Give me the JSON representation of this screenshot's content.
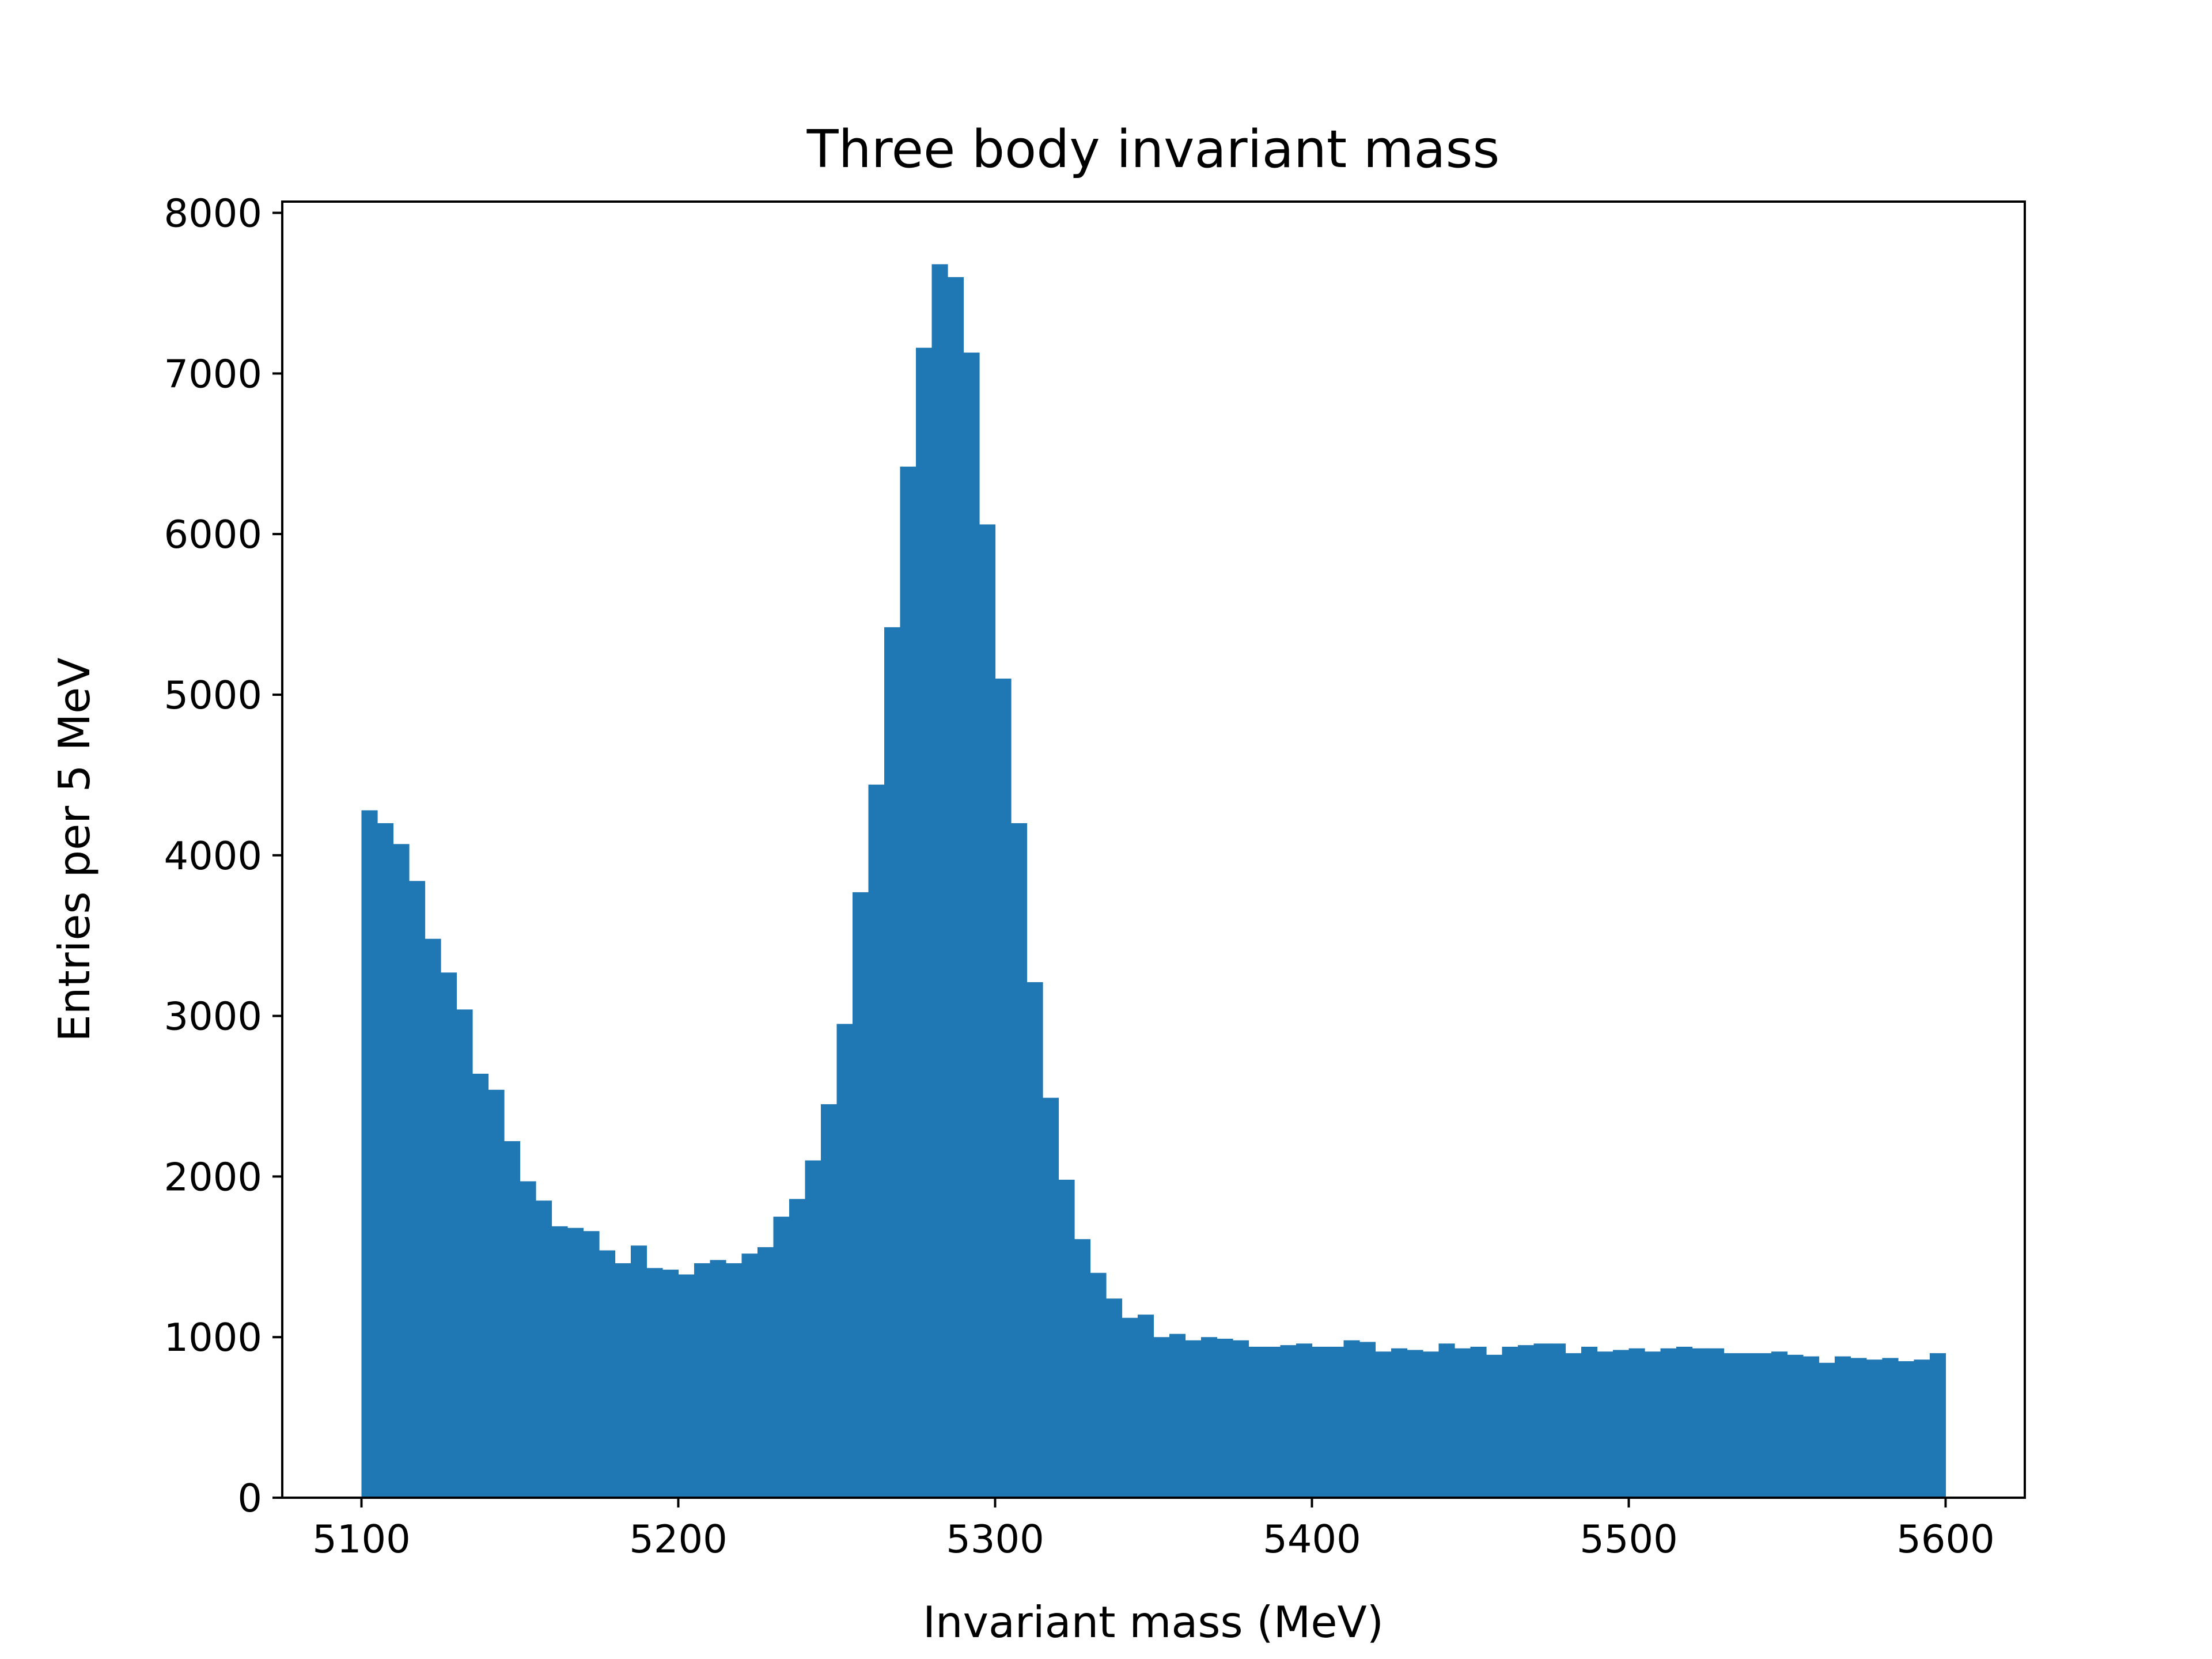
{
  "chart_data": {
    "type": "bar",
    "title": "Three body invariant mass",
    "xlabel": "Invariant mass (MeV)",
    "ylabel": "Entries per 5 MeV",
    "xlim": [
      5075,
      5625
    ],
    "ylim": [
      0,
      8070
    ],
    "bin_width": 5,
    "x": [
      5100,
      5105,
      5110,
      5115,
      5120,
      5125,
      5130,
      5135,
      5140,
      5145,
      5150,
      5155,
      5160,
      5165,
      5170,
      5175,
      5180,
      5185,
      5190,
      5195,
      5200,
      5205,
      5210,
      5215,
      5220,
      5225,
      5230,
      5235,
      5240,
      5245,
      5250,
      5255,
      5260,
      5265,
      5270,
      5275,
      5280,
      5285,
      5290,
      5295,
      5300,
      5305,
      5310,
      5315,
      5320,
      5325,
      5330,
      5335,
      5340,
      5345,
      5350,
      5355,
      5360,
      5365,
      5370,
      5375,
      5380,
      5385,
      5390,
      5395,
      5400,
      5405,
      5410,
      5415,
      5420,
      5425,
      5430,
      5435,
      5440,
      5445,
      5450,
      5455,
      5460,
      5465,
      5470,
      5475,
      5480,
      5485,
      5490,
      5495,
      5500,
      5505,
      5510,
      5515,
      5520,
      5525,
      5530,
      5535,
      5540,
      5545,
      5550,
      5555,
      5560,
      5565,
      5570,
      5575,
      5580,
      5585,
      5590,
      5595
    ],
    "values": [
      4280,
      4200,
      4070,
      3840,
      3480,
      3270,
      3040,
      2640,
      2540,
      2220,
      1970,
      1850,
      1690,
      1680,
      1660,
      1540,
      1460,
      1570,
      1430,
      1420,
      1390,
      1460,
      1480,
      1460,
      1520,
      1560,
      1750,
      1860,
      2100,
      2450,
      2950,
      3770,
      4440,
      5420,
      6420,
      7160,
      7680,
      7600,
      7130,
      6060,
      5100,
      4200,
      3210,
      2490,
      1980,
      1610,
      1400,
      1240,
      1120,
      1140,
      1000,
      1020,
      980,
      1000,
      990,
      980,
      940,
      940,
      950,
      960,
      940,
      940,
      980,
      970,
      910,
      930,
      920,
      910,
      960,
      930,
      940,
      890,
      940,
      950,
      960,
      960,
      900,
      940,
      910,
      920,
      930,
      910,
      930,
      940,
      930,
      930,
      900,
      900,
      900,
      910,
      890,
      880,
      840,
      880,
      870,
      860,
      870,
      850,
      860,
      900
    ]
  }
}
